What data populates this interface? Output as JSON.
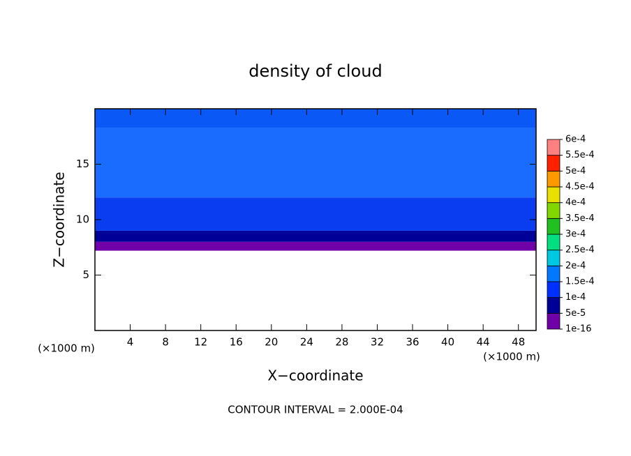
{
  "chart_data": {
    "type": "contour",
    "title": "density of cloud",
    "xlabel": "X−coordinate",
    "ylabel": "Z−coordinate",
    "x_unit_label": "(×1000 m)",
    "z_unit_label": "(×1000 m)",
    "footer": "CONTOUR INTERVAL = 2.000E-04",
    "xlim": [
      0,
      50
    ],
    "ylim": [
      0,
      20
    ],
    "xticks": [
      4,
      8,
      12,
      16,
      20,
      24,
      28,
      32,
      36,
      40,
      44,
      48
    ],
    "yticks": [
      5,
      10,
      15
    ],
    "field": [
      {
        "zlim": [
          7.2,
          8
        ],
        "color": "#7000a8"
      },
      {
        "zlim": [
          8,
          9
        ],
        "color": "#000096"
      },
      {
        "zlim": [
          9,
          12
        ],
        "color": "#0a3cf0"
      },
      {
        "zlim": [
          12,
          18.3
        ],
        "color": "#1a6cff"
      },
      {
        "zlim": [
          18.3,
          20
        ],
        "color": "#0a58f5"
      }
    ],
    "colorbar": {
      "levels": [
        {
          "value": 1e-16,
          "label": "1e-16"
        },
        {
          "value": 5e-05,
          "label": "5e-5"
        },
        {
          "value": 0.0001,
          "label": "1e-4"
        },
        {
          "value": 0.00015,
          "label": "1.5e-4"
        },
        {
          "value": 0.0002,
          "label": "2e-4"
        },
        {
          "value": 0.00025,
          "label": "2.5e-4"
        },
        {
          "value": 0.0003,
          "label": "3e-4"
        },
        {
          "value": 0.00035,
          "label": "3.5e-4"
        },
        {
          "value": 0.0004,
          "label": "4e-4"
        },
        {
          "value": 0.00045,
          "label": "4.5e-4"
        },
        {
          "value": 0.0005,
          "label": "5e-4"
        },
        {
          "value": 0.00055,
          "label": "5.5e-4"
        },
        {
          "value": 0.0006,
          "label": "6e-4"
        }
      ],
      "colors": [
        "#7000a8",
        "#000096",
        "#0030ff",
        "#0078ff",
        "#00c8e0",
        "#00e080",
        "#20c020",
        "#80d800",
        "#e8e000",
        "#ff9900",
        "#ff2000",
        "#ff8080"
      ]
    }
  }
}
